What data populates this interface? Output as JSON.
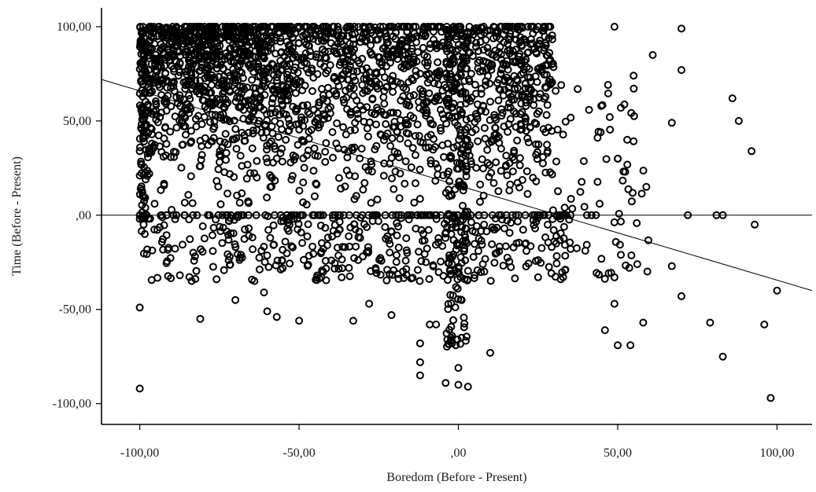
{
  "chart_data": {
    "type": "scatter",
    "title": "",
    "xlabel": "Boredom (Before - Present)",
    "ylabel": "Time (Before - Present)",
    "xlim": [
      -112,
      111
    ],
    "ylim": [
      -111,
      110
    ],
    "xticks": [
      -100,
      -50,
      0,
      50,
      100
    ],
    "yticks": [
      -100,
      -50,
      0,
      50,
      100
    ],
    "xtick_labels": [
      "-100,00",
      "-50,00",
      ",00",
      "50,00",
      "100,00"
    ],
    "ytick_labels": [
      "-100,00",
      "-50,00",
      ",00",
      "50,00",
      "100,00"
    ],
    "grid": false,
    "reference_line_y": 0,
    "fit_line": {
      "x": [
        -112,
        111
      ],
      "y": [
        72,
        -40
      ]
    },
    "marker": "open-circle",
    "colors": {
      "marker": "#000000",
      "axes": "#000000",
      "background": "#ffffff"
    },
    "notable_points": [
      {
        "x": 49,
        "y": 100
      },
      {
        "x": 70,
        "y": 99
      },
      {
        "x": 61,
        "y": 85
      },
      {
        "x": 70,
        "y": 77
      },
      {
        "x": 86,
        "y": 62
      },
      {
        "x": 88,
        "y": 50
      },
      {
        "x": 67,
        "y": 49
      },
      {
        "x": 92,
        "y": 34
      },
      {
        "x": 50,
        "y": 30
      },
      {
        "x": 53,
        "y": 40
      },
      {
        "x": 55,
        "y": 74
      },
      {
        "x": 51,
        "y": 57
      },
      {
        "x": 59,
        "y": 15
      },
      {
        "x": 72,
        "y": 0
      },
      {
        "x": 81,
        "y": 0
      },
      {
        "x": 83,
        "y": 0
      },
      {
        "x": 93,
        "y": -5
      },
      {
        "x": 100,
        "y": -40
      },
      {
        "x": 67,
        "y": -27
      },
      {
        "x": 70,
        "y": -43
      },
      {
        "x": 58,
        "y": -57
      },
      {
        "x": 79,
        "y": -57
      },
      {
        "x": 96,
        "y": -58
      },
      {
        "x": 50,
        "y": -69
      },
      {
        "x": 54,
        "y": -69
      },
      {
        "x": 83,
        "y": -75
      },
      {
        "x": 98,
        "y": -97
      },
      {
        "x": 46,
        "y": -61
      },
      {
        "x": 49,
        "y": -47
      },
      {
        "x": 49,
        "y": -33
      },
      {
        "x": 51,
        "y": -21
      },
      {
        "x": 10,
        "y": -73
      },
      {
        "x": -100,
        "y": -92
      },
      {
        "x": -100,
        "y": -49
      },
      {
        "x": -81,
        "y": -55
      },
      {
        "x": -70,
        "y": -45
      },
      {
        "x": -57,
        "y": -54
      },
      {
        "x": -50,
        "y": -56
      },
      {
        "x": -33,
        "y": -56
      },
      {
        "x": -61,
        "y": -41
      },
      {
        "x": -60,
        "y": -51
      },
      {
        "x": -28,
        "y": -47
      },
      {
        "x": -21,
        "y": -53
      },
      {
        "x": -12,
        "y": -68
      },
      {
        "x": -12,
        "y": -78
      },
      {
        "x": -12,
        "y": -85
      },
      {
        "x": -9,
        "y": -58
      },
      {
        "x": -7,
        "y": -58
      },
      {
        "x": -4,
        "y": -89
      },
      {
        "x": 0,
        "y": -90
      },
      {
        "x": 3,
        "y": -91
      },
      {
        "x": 0,
        "y": -81
      },
      {
        "x": -2,
        "y": -68
      },
      {
        "x": 1,
        "y": -65
      },
      {
        "x": -2,
        "y": -64
      },
      {
        "x": -100,
        "y": 34
      },
      {
        "x": -100,
        "y": 21
      },
      {
        "x": -97,
        "y": 22
      },
      {
        "x": -97,
        "y": 34
      },
      {
        "x": -100,
        "y": 0
      },
      {
        "x": -100,
        "y": -2
      }
    ],
    "dense_regions": [
      {
        "x": [
          -100,
          30
        ],
        "y": [
          0,
          100
        ],
        "count": 1700
      },
      {
        "x": [
          -100,
          35
        ],
        "y": [
          -35,
          0
        ],
        "count": 380
      },
      {
        "x": [
          -4,
          3
        ],
        "y": [
          -70,
          100
        ],
        "count": 160
      },
      {
        "x": [
          -100,
          30
        ],
        "y": [
          100,
          100
        ],
        "count": 140
      },
      {
        "x": [
          -100,
          -60
        ],
        "y": [
          50,
          100
        ],
        "count": 300
      },
      {
        "x": [
          -100,
          45
        ],
        "y": [
          0,
          0
        ],
        "count": 120
      },
      {
        "x": [
          -100,
          -98
        ],
        "y": [
          -2,
          100
        ],
        "count": 60
      },
      {
        "x": [
          30,
          60
        ],
        "y": [
          -40,
          75
        ],
        "count": 70
      }
    ]
  }
}
